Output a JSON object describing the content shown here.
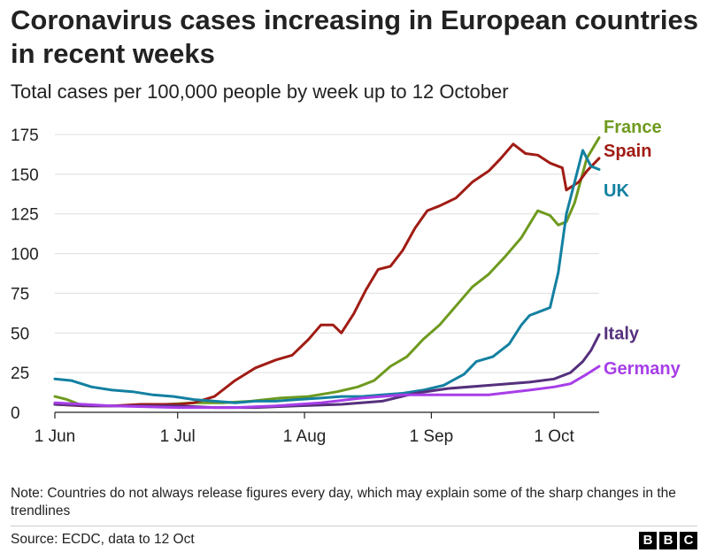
{
  "header": {
    "title": "Coronavirus cases increasing in European countries in recent weeks",
    "subtitle": "Total cases per 100,000 people by week up to 12 October"
  },
  "chart_data": {
    "type": "line",
    "ylim": [
      0,
      175
    ],
    "yticks": [
      0,
      25,
      50,
      75,
      100,
      125,
      150,
      175
    ],
    "xlim": [
      "2020-06-01",
      "2020-10-12"
    ],
    "xticks": [
      {
        "date": "2020-06-01",
        "label": "1 Jun"
      },
      {
        "date": "2020-07-01",
        "label": "1 Jul"
      },
      {
        "date": "2020-08-01",
        "label": "1 Aug"
      },
      {
        "date": "2020-09-01",
        "label": "1 Sep"
      },
      {
        "date": "2020-10-01",
        "label": "1 Oct"
      }
    ],
    "grid": true,
    "series": [
      {
        "name": "France",
        "color": "#6e9a1e",
        "points": [
          [
            "2020-06-01",
            10
          ],
          [
            "2020-06-04",
            8
          ],
          [
            "2020-06-07",
            5
          ],
          [
            "2020-06-14",
            4
          ],
          [
            "2020-06-21",
            4
          ],
          [
            "2020-06-28",
            5
          ],
          [
            "2020-07-05",
            6
          ],
          [
            "2020-07-12",
            6
          ],
          [
            "2020-07-19",
            7
          ],
          [
            "2020-07-26",
            9
          ],
          [
            "2020-08-02",
            10
          ],
          [
            "2020-08-09",
            13
          ],
          [
            "2020-08-14",
            16
          ],
          [
            "2020-08-18",
            20
          ],
          [
            "2020-08-22",
            29
          ],
          [
            "2020-08-26",
            35
          ],
          [
            "2020-08-30",
            46
          ],
          [
            "2020-09-03",
            55
          ],
          [
            "2020-09-07",
            67
          ],
          [
            "2020-09-11",
            79
          ],
          [
            "2020-09-15",
            87
          ],
          [
            "2020-09-19",
            98
          ],
          [
            "2020-09-23",
            110
          ],
          [
            "2020-09-27",
            127
          ],
          [
            "2020-09-30",
            124
          ],
          [
            "2020-10-02",
            118
          ],
          [
            "2020-10-04",
            120
          ],
          [
            "2020-10-06",
            132
          ],
          [
            "2020-10-09",
            160
          ],
          [
            "2020-10-12",
            173
          ]
        ]
      },
      {
        "name": "Spain",
        "color": "#a01c14",
        "points": [
          [
            "2020-06-01",
            5
          ],
          [
            "2020-06-08",
            4
          ],
          [
            "2020-06-15",
            4
          ],
          [
            "2020-06-22",
            5
          ],
          [
            "2020-06-29",
            5
          ],
          [
            "2020-07-01",
            5
          ],
          [
            "2020-07-05",
            6
          ],
          [
            "2020-07-10",
            10
          ],
          [
            "2020-07-15",
            20
          ],
          [
            "2020-07-20",
            28
          ],
          [
            "2020-07-25",
            33
          ],
          [
            "2020-07-29",
            36
          ],
          [
            "2020-08-02",
            46
          ],
          [
            "2020-08-05",
            55
          ],
          [
            "2020-08-08",
            55
          ],
          [
            "2020-08-10",
            50
          ],
          [
            "2020-08-13",
            62
          ],
          [
            "2020-08-16",
            77
          ],
          [
            "2020-08-19",
            90
          ],
          [
            "2020-08-22",
            92
          ],
          [
            "2020-08-25",
            102
          ],
          [
            "2020-08-28",
            116
          ],
          [
            "2020-08-31",
            127
          ],
          [
            "2020-09-03",
            130
          ],
          [
            "2020-09-07",
            135
          ],
          [
            "2020-09-11",
            145
          ],
          [
            "2020-09-15",
            152
          ],
          [
            "2020-09-18",
            160
          ],
          [
            "2020-09-21",
            169
          ],
          [
            "2020-09-24",
            163
          ],
          [
            "2020-09-27",
            162
          ],
          [
            "2020-09-30",
            157
          ],
          [
            "2020-10-03",
            154
          ],
          [
            "2020-10-04",
            140
          ],
          [
            "2020-10-07",
            145
          ],
          [
            "2020-10-09",
            152
          ],
          [
            "2020-10-12",
            160
          ]
        ]
      },
      {
        "name": "UK",
        "color": "#1380a1",
        "points": [
          [
            "2020-06-01",
            21
          ],
          [
            "2020-06-05",
            20
          ],
          [
            "2020-06-10",
            16
          ],
          [
            "2020-06-15",
            14
          ],
          [
            "2020-06-20",
            13
          ],
          [
            "2020-06-25",
            11
          ],
          [
            "2020-06-30",
            10
          ],
          [
            "2020-07-05",
            8
          ],
          [
            "2020-07-10",
            7
          ],
          [
            "2020-07-15",
            6
          ],
          [
            "2020-07-20",
            7
          ],
          [
            "2020-07-25",
            7
          ],
          [
            "2020-07-30",
            8
          ],
          [
            "2020-08-05",
            9
          ],
          [
            "2020-08-10",
            10
          ],
          [
            "2020-08-15",
            10
          ],
          [
            "2020-08-20",
            11
          ],
          [
            "2020-08-25",
            12
          ],
          [
            "2020-08-30",
            14
          ],
          [
            "2020-09-04",
            17
          ],
          [
            "2020-09-09",
            24
          ],
          [
            "2020-09-12",
            32
          ],
          [
            "2020-09-16",
            35
          ],
          [
            "2020-09-20",
            43
          ],
          [
            "2020-09-23",
            55
          ],
          [
            "2020-09-25",
            61
          ],
          [
            "2020-09-28",
            64
          ],
          [
            "2020-09-30",
            66
          ],
          [
            "2020-10-02",
            88
          ],
          [
            "2020-10-04",
            125
          ],
          [
            "2020-10-06",
            145
          ],
          [
            "2020-10-08",
            165
          ],
          [
            "2020-10-10",
            155
          ],
          [
            "2020-10-12",
            153
          ]
        ]
      },
      {
        "name": "Italy",
        "color": "#55307c",
        "points": [
          [
            "2020-06-01",
            5
          ],
          [
            "2020-06-10",
            4
          ],
          [
            "2020-06-20",
            4
          ],
          [
            "2020-07-01",
            4
          ],
          [
            "2020-07-10",
            3
          ],
          [
            "2020-07-20",
            3
          ],
          [
            "2020-07-30",
            4
          ],
          [
            "2020-08-10",
            5
          ],
          [
            "2020-08-20",
            7
          ],
          [
            "2020-08-28",
            12
          ],
          [
            "2020-09-05",
            15
          ],
          [
            "2020-09-15",
            17
          ],
          [
            "2020-09-25",
            19
          ],
          [
            "2020-10-01",
            21
          ],
          [
            "2020-10-05",
            25
          ],
          [
            "2020-10-08",
            32
          ],
          [
            "2020-10-10",
            39
          ],
          [
            "2020-10-12",
            49
          ]
        ]
      },
      {
        "name": "Germany",
        "color": "#a73ee8",
        "points": [
          [
            "2020-06-01",
            6
          ],
          [
            "2020-06-15",
            4
          ],
          [
            "2020-07-01",
            3
          ],
          [
            "2020-07-15",
            3
          ],
          [
            "2020-07-25",
            4
          ],
          [
            "2020-08-05",
            6
          ],
          [
            "2020-08-15",
            9
          ],
          [
            "2020-08-25",
            11
          ],
          [
            "2020-09-05",
            11
          ],
          [
            "2020-09-15",
            11
          ],
          [
            "2020-09-25",
            14
          ],
          [
            "2020-10-01",
            16
          ],
          [
            "2020-10-05",
            18
          ],
          [
            "2020-10-09",
            24
          ],
          [
            "2020-10-12",
            29
          ]
        ]
      }
    ],
    "series_labels": [
      {
        "name": "France",
        "text": "France",
        "color": "#6e9a1e",
        "value": 180
      },
      {
        "name": "Spain",
        "text": "Spain",
        "color": "#a01c14",
        "value": 165
      },
      {
        "name": "UK",
        "text": "UK",
        "color": "#1380a1",
        "value": 140
      },
      {
        "name": "Italy",
        "text": "Italy",
        "color": "#55307c",
        "value": 50
      },
      {
        "name": "Germany",
        "text": "Germany",
        "color": "#a73ee8",
        "value": 28
      }
    ]
  },
  "footer": {
    "note": "Note: Countries do not always release figures every day, which may explain some of the sharp changes in the trendlines",
    "source": "Source: ECDC, data to 12 Oct",
    "logo_letters": [
      "B",
      "B",
      "C"
    ]
  }
}
